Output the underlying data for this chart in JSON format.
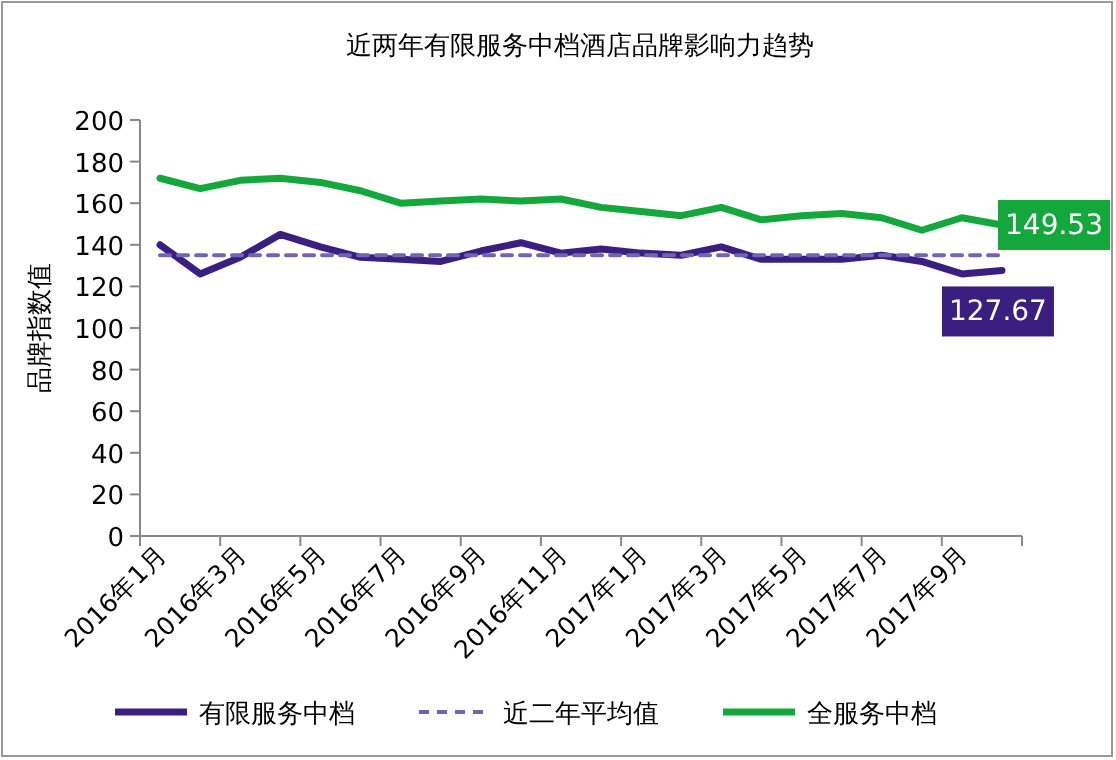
{
  "chart_data": {
    "type": "line",
    "title": "近两年有限服务中档酒店品牌影响力趋势",
    "ylabel": "品牌指数值",
    "categories": [
      "2016年1月",
      null,
      "2016年3月",
      null,
      "2016年5月",
      null,
      "2016年7月",
      null,
      "2016年9月",
      null,
      "2016年11月",
      null,
      "2017年1月",
      null,
      "2017年3月",
      null,
      "2017年5月",
      null,
      "2017年7月",
      null,
      "2017年9月",
      null
    ],
    "series": [
      {
        "name": "有限服务中档",
        "color": "#3b1f80",
        "line_style": "solid",
        "values": [
          140,
          126,
          134,
          145,
          139,
          134,
          133,
          132,
          137,
          141,
          136,
          138,
          136,
          135,
          139,
          133,
          133,
          133,
          135,
          132,
          126,
          127.67
        ],
        "value_labels": [
          null,
          null,
          null,
          null,
          null,
          null,
          null,
          null,
          null,
          null,
          null,
          null,
          null,
          null,
          null,
          null,
          null,
          null,
          null,
          null,
          null,
          "127.67"
        ]
      },
      {
        "name": "近二年平均值",
        "color": "#7264b4",
        "line_style": "dashed",
        "values": [
          135,
          135,
          135,
          135,
          135,
          135,
          135,
          135,
          135,
          135,
          135,
          135,
          135,
          135,
          135,
          135,
          135,
          135,
          135,
          135,
          135,
          135
        ]
      },
      {
        "name": "全服务中档",
        "color": "#14a83c",
        "line_style": "solid",
        "values": [
          172,
          167,
          171,
          172,
          170,
          166,
          160,
          161,
          162,
          161,
          162,
          158,
          156,
          154,
          158,
          152,
          154,
          155,
          153,
          147,
          153,
          149.53
        ],
        "value_labels": [
          null,
          null,
          null,
          null,
          null,
          null,
          null,
          null,
          null,
          null,
          null,
          null,
          null,
          null,
          null,
          null,
          null,
          null,
          null,
          null,
          null,
          "149.53"
        ]
      }
    ],
    "ylim": [
      0,
      200
    ],
    "yticks": [
      0,
      20,
      40,
      60,
      80,
      100,
      120,
      140,
      160,
      180,
      200
    ],
    "legend": "bottom"
  }
}
